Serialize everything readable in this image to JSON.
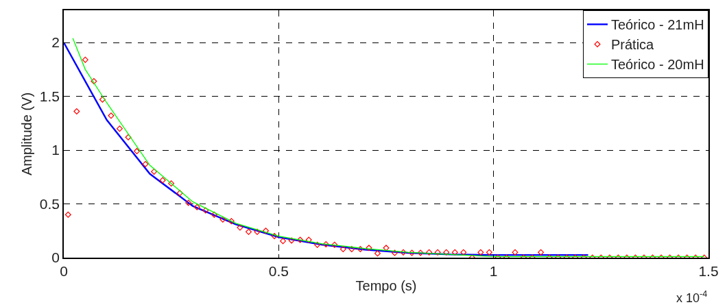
{
  "chart_data": {
    "type": "line",
    "xlabel": "Tempo (s)",
    "ylabel": "Amplitude (V)",
    "annotations": [
      "x 10$^{-4}$"
    ],
    "xlim": [
      0,
      1.5
    ],
    "xticks": [
      0,
      0.5,
      1,
      1.5
    ],
    "ylim": [
      0,
      2.3
    ],
    "yticks": [
      0,
      0.5,
      1,
      1.5,
      2
    ],
    "grid": true,
    "legend": "top right",
    "line_style": "solid",
    "series": [
      {
        "name": "Teórico - 21mH",
        "marker": "none",
        "color": "#0000ff",
        "x": [
          0,
          0.05,
          0.1,
          0.2,
          0.3,
          0.4,
          0.5,
          0.6,
          0.7,
          0.8,
          0.9,
          1.0,
          1.1,
          1.22
        ],
        "values": [
          2.0,
          1.64,
          1.28,
          0.78,
          0.48,
          0.31,
          0.19,
          0.12,
          0.075,
          0.045,
          0.03,
          0.025,
          0.025,
          0.025
        ]
      },
      {
        "name": "Prática",
        "type": "scatter",
        "marker": "diamond",
        "color": "#ff0000",
        "x": [
          0.01,
          0.03,
          0.05,
          0.07,
          0.09,
          0.11,
          0.13,
          0.15,
          0.17,
          0.19,
          0.21,
          0.23,
          0.25,
          0.27,
          0.29,
          0.31,
          0.33,
          0.35,
          0.37,
          0.39,
          0.41,
          0.43,
          0.45,
          0.47,
          0.49,
          0.51,
          0.53,
          0.55,
          0.57,
          0.59,
          0.61,
          0.63,
          0.65,
          0.67,
          0.69,
          0.71,
          0.73,
          0.75,
          0.77,
          0.79,
          0.81,
          0.83,
          0.85,
          0.87,
          0.89,
          0.91,
          0.93,
          0.95,
          0.97,
          0.99,
          1.01,
          1.03,
          1.05,
          1.07,
          1.09,
          1.11,
          1.13,
          1.15,
          1.17,
          1.19,
          1.21,
          1.23,
          1.25,
          1.27,
          1.29,
          1.31,
          1.33,
          1.35,
          1.37,
          1.39,
          1.41,
          1.43,
          1.45,
          1.47,
          1.49
        ],
        "values": [
          0.4,
          1.36,
          1.84,
          1.64,
          1.47,
          1.32,
          1.2,
          1.12,
          0.99,
          0.87,
          0.8,
          0.72,
          0.69,
          0.6,
          0.51,
          0.47,
          0.44,
          0.4,
          0.355,
          0.34,
          0.28,
          0.24,
          0.24,
          0.25,
          0.2,
          0.155,
          0.16,
          0.165,
          0.165,
          0.12,
          0.125,
          0.12,
          0.08,
          0.08,
          0.08,
          0.09,
          0.04,
          0.09,
          0.045,
          0.05,
          0.045,
          0.045,
          0.05,
          0.05,
          0.05,
          0.05,
          0.05,
          0,
          0.05,
          0.05,
          0,
          0,
          0.05,
          0,
          0,
          0.05,
          0,
          0,
          0,
          0,
          0,
          0,
          0,
          0,
          0,
          0,
          0,
          0,
          0,
          0,
          0,
          0,
          0,
          0,
          0
        ]
      },
      {
        "name": "Teórico - 20mH",
        "marker": "none",
        "color": "#00ff00",
        "x": [
          0.021,
          0.05,
          0.1,
          0.2,
          0.3,
          0.4,
          0.5,
          0.6,
          0.7,
          0.8,
          0.9,
          1.0,
          1.2,
          1.49
        ],
        "values": [
          2.04,
          1.75,
          1.44,
          0.86,
          0.52,
          0.32,
          0.2,
          0.13,
          0.085,
          0.05,
          0.03,
          0.01,
          0.01,
          0.01
        ]
      }
    ]
  }
}
